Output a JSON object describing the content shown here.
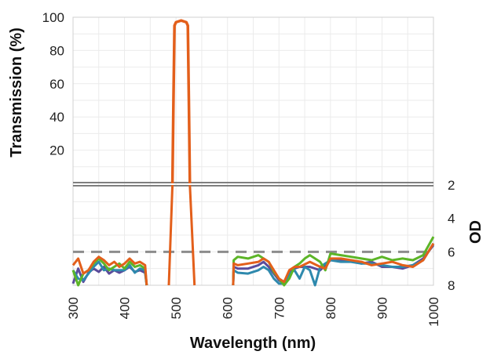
{
  "chart_data": {
    "type": "line",
    "xlabel": "Wavelength (nm)",
    "ylabel_left": "Transmission (%)",
    "ylabel_right": "OD",
    "xlim": [
      300,
      1000
    ],
    "x_ticks": [
      "300",
      "400",
      "500",
      "600",
      "700",
      "800",
      "900",
      "1000"
    ],
    "upper_panel": {
      "ylim": [
        0,
        100
      ],
      "y_ticks": [
        "20",
        "40",
        "60",
        "80",
        "100"
      ]
    },
    "lower_panel": {
      "ylim": [
        2,
        8
      ],
      "inverted": true,
      "y_ticks": [
        "2",
        "4",
        "6",
        "8"
      ],
      "reference_line_od": 6
    },
    "grid": true,
    "legend": "none",
    "colors": {
      "purple": "#5b4b9b",
      "teal": "#2e89ad",
      "green": "#5cb527",
      "orange": "#e35f1b",
      "reference": "#8c8c8c",
      "divider": "#7f7f7f"
    },
    "series": [
      {
        "color_key": "purple",
        "transmission": [],
        "od": [
          [
            300,
            7.9
          ],
          [
            310,
            7.0
          ],
          [
            320,
            7.8
          ],
          [
            330,
            7.25
          ],
          [
            340,
            7.0
          ],
          [
            350,
            7.2
          ],
          [
            360,
            6.9
          ],
          [
            370,
            7.3
          ],
          [
            380,
            7.1
          ],
          [
            390,
            7.25
          ],
          [
            400,
            7.1
          ],
          [
            410,
            6.9
          ],
          [
            420,
            7.2
          ],
          [
            430,
            7.1
          ],
          [
            440,
            7.25
          ],
          [
            443,
            8
          ],
          null,
          [
            611,
            8
          ],
          [
            612,
            6.9
          ],
          [
            620,
            7.0
          ],
          [
            640,
            7.0
          ],
          [
            660,
            6.8
          ],
          [
            670,
            6.6
          ],
          [
            680,
            6.9
          ],
          [
            690,
            7.3
          ],
          [
            700,
            7.7
          ],
          [
            710,
            7.9
          ],
          [
            720,
            7.25
          ],
          [
            730,
            7.0
          ],
          [
            740,
            6.9
          ],
          [
            760,
            6.9
          ],
          [
            780,
            7.1
          ],
          [
            800,
            6.5
          ],
          [
            820,
            6.5
          ],
          [
            840,
            6.5
          ],
          [
            860,
            6.7
          ],
          [
            880,
            6.6
          ],
          [
            900,
            6.9
          ],
          [
            920,
            6.9
          ],
          [
            940,
            7.0
          ],
          [
            960,
            6.8
          ],
          [
            980,
            6.4
          ],
          [
            1000,
            5.6
          ]
        ]
      },
      {
        "color_key": "teal",
        "transmission": [],
        "od": [
          [
            300,
            7.1
          ],
          [
            310,
            7.6
          ],
          [
            320,
            7.7
          ],
          [
            330,
            7.3
          ],
          [
            340,
            6.9
          ],
          [
            350,
            6.6
          ],
          [
            360,
            7.1
          ],
          [
            370,
            7.0
          ],
          [
            380,
            7.1
          ],
          [
            390,
            7.1
          ],
          [
            400,
            7.1
          ],
          [
            410,
            6.8
          ],
          [
            420,
            7.25
          ],
          [
            430,
            7.0
          ],
          [
            440,
            7.1
          ],
          [
            443,
            8
          ],
          null,
          [
            611,
            8
          ],
          [
            612,
            7.1
          ],
          [
            620,
            7.25
          ],
          [
            640,
            7.3
          ],
          [
            660,
            7.1
          ],
          [
            670,
            6.9
          ],
          [
            680,
            7.1
          ],
          [
            690,
            7.6
          ],
          [
            700,
            7.9
          ],
          [
            710,
            7.9
          ],
          [
            720,
            7.3
          ],
          [
            730,
            7.1
          ],
          [
            740,
            7.6
          ],
          [
            750,
            6.9
          ],
          [
            760,
            7.1
          ],
          [
            770,
            8
          ],
          [
            780,
            6.9
          ],
          [
            800,
            6.5
          ],
          [
            820,
            6.6
          ],
          [
            840,
            6.6
          ],
          [
            860,
            6.7
          ],
          [
            880,
            6.7
          ],
          [
            900,
            6.8
          ],
          [
            920,
            6.9
          ],
          [
            940,
            6.9
          ],
          [
            960,
            6.8
          ],
          [
            980,
            6.5
          ],
          [
            1000,
            5.5
          ]
        ]
      },
      {
        "color_key": "green",
        "transmission": [],
        "od": [
          [
            300,
            7.1
          ],
          [
            310,
            8
          ],
          [
            320,
            7.3
          ],
          [
            330,
            7.1
          ],
          [
            340,
            6.7
          ],
          [
            350,
            6.4
          ],
          [
            360,
            6.7
          ],
          [
            370,
            7.1
          ],
          [
            380,
            6.9
          ],
          [
            390,
            6.7
          ],
          [
            400,
            7.0
          ],
          [
            410,
            6.6
          ],
          [
            420,
            6.9
          ],
          [
            430,
            6.8
          ],
          [
            440,
            7.0
          ],
          [
            443,
            8
          ],
          null,
          [
            611,
            8
          ],
          [
            612,
            6.5
          ],
          [
            620,
            6.3
          ],
          [
            640,
            6.4
          ],
          [
            660,
            6.2
          ],
          [
            670,
            6.4
          ],
          [
            680,
            6.6
          ],
          [
            690,
            7.2
          ],
          [
            700,
            7.6
          ],
          [
            710,
            8
          ],
          [
            720,
            7.6
          ],
          [
            730,
            6.9
          ],
          [
            740,
            6.7
          ],
          [
            750,
            6.4
          ],
          [
            760,
            6.2
          ],
          [
            780,
            6.6
          ],
          [
            790,
            7.1
          ],
          [
            800,
            6.1
          ],
          [
            820,
            6.2
          ],
          [
            840,
            6.3
          ],
          [
            860,
            6.4
          ],
          [
            880,
            6.5
          ],
          [
            900,
            6.3
          ],
          [
            920,
            6.5
          ],
          [
            940,
            6.4
          ],
          [
            960,
            6.5
          ],
          [
            980,
            6.2
          ],
          [
            1000,
            5.1
          ]
        ]
      },
      {
        "color_key": "orange",
        "transmission": [
          [
            493,
            0
          ],
          [
            495,
            50
          ],
          [
            497,
            95
          ],
          [
            500,
            97
          ],
          [
            510,
            98
          ],
          [
            520,
            97
          ],
          [
            523,
            95
          ],
          [
            525,
            50
          ],
          [
            527,
            0
          ]
        ],
        "od": [
          [
            300,
            6.8
          ],
          [
            310,
            6.4
          ],
          [
            320,
            7.3
          ],
          [
            330,
            7.1
          ],
          [
            340,
            6.6
          ],
          [
            350,
            6.3
          ],
          [
            360,
            6.5
          ],
          [
            370,
            6.8
          ],
          [
            380,
            6.6
          ],
          [
            390,
            6.9
          ],
          [
            400,
            6.7
          ],
          [
            410,
            6.4
          ],
          [
            420,
            6.7
          ],
          [
            430,
            6.6
          ],
          [
            440,
            6.8
          ],
          [
            443,
            8
          ],
          null,
          [
            486,
            8
          ],
          [
            493,
            2
          ],
          null,
          [
            527,
            2
          ],
          [
            536,
            8
          ],
          null,
          [
            611,
            8
          ],
          [
            612,
            6.7
          ],
          [
            620,
            6.8
          ],
          [
            640,
            6.7
          ],
          [
            660,
            6.6
          ],
          [
            670,
            6.4
          ],
          [
            680,
            6.6
          ],
          [
            690,
            7.1
          ],
          [
            700,
            7.6
          ],
          [
            710,
            7.8
          ],
          [
            720,
            7.1
          ],
          [
            730,
            6.9
          ],
          [
            740,
            6.9
          ],
          [
            760,
            6.6
          ],
          [
            780,
            6.9
          ],
          [
            790,
            7.0
          ],
          [
            800,
            6.4
          ],
          [
            820,
            6.4
          ],
          [
            840,
            6.5
          ],
          [
            860,
            6.6
          ],
          [
            880,
            6.8
          ],
          [
            900,
            6.7
          ],
          [
            920,
            6.6
          ],
          [
            940,
            6.8
          ],
          [
            960,
            6.9
          ],
          [
            980,
            6.5
          ],
          [
            1000,
            5.5
          ]
        ]
      }
    ]
  }
}
